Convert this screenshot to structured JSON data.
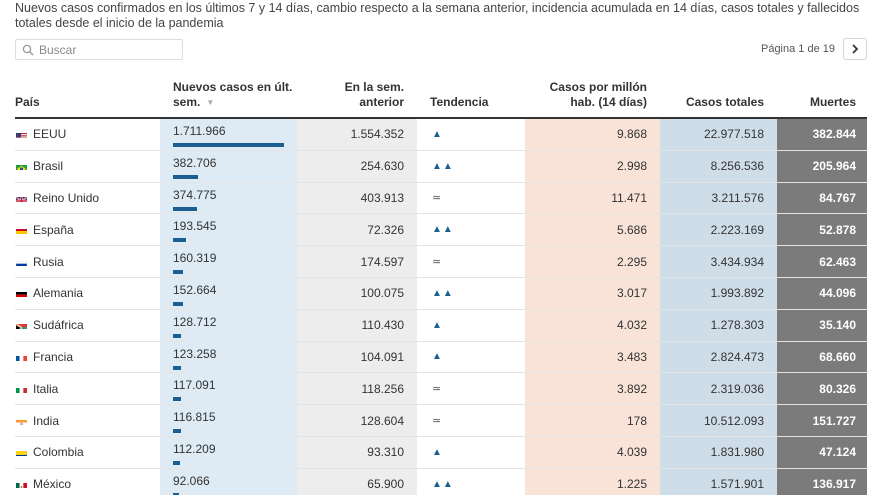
{
  "subtitle": "Nuevos casos confirmados en los últimos 7 y 14 días, cambio respecto a la semana anterior, incidencia acumulada en 14 días, casos totales y fallecidos totales desde el inicio de la pandemia",
  "search": {
    "placeholder": "Buscar"
  },
  "pager": {
    "label": "Página 1 de 19"
  },
  "headers": {
    "country": "País",
    "new_cases_line1": "Nuevos casos en últ.",
    "new_cases_line2": "sem.",
    "prev_week_line1": "En la sem.",
    "prev_week_line2": "anterior",
    "trend": "Tendencia",
    "per_million_line1": "Casos por millón",
    "per_million_line2": "hab. (14 días)",
    "total": "Casos totales",
    "deaths": "Muertes"
  },
  "colors": {
    "bar": "#1b5f90",
    "new_bg": "#deebf5",
    "prev_bg": "#ededed",
    "permil_bg": "#f9e3d8",
    "total_bg": "#cfdde9",
    "deaths_bg": "#7b7b7b"
  },
  "rows": [
    {
      "flag": "us-flag",
      "country": "EEUU",
      "new_cases": "1.711.966",
      "new_value": 1711966,
      "prev_week": "1.554.352",
      "trend": "▲",
      "per_million": "9.868",
      "total": "22.977.518",
      "deaths": "382.844"
    },
    {
      "flag": "br-flag",
      "country": "Brasil",
      "new_cases": "382.706",
      "new_value": 382706,
      "prev_week": "254.630",
      "trend": "▲▲",
      "per_million": "2.998",
      "total": "8.256.536",
      "deaths": "205.964"
    },
    {
      "flag": "gb-flag",
      "country": "Reino Unido",
      "new_cases": "374.775",
      "new_value": 374775,
      "prev_week": "403.913",
      "trend": "≃",
      "per_million": "11.471",
      "total": "3.211.576",
      "deaths": "84.767"
    },
    {
      "flag": "es-flag",
      "country": "España",
      "new_cases": "193.545",
      "new_value": 193545,
      "prev_week": "72.326",
      "trend": "▲▲",
      "per_million": "5.686",
      "total": "2.223.169",
      "deaths": "52.878"
    },
    {
      "flag": "ru-flag",
      "country": "Rusia",
      "new_cases": "160.319",
      "new_value": 160319,
      "prev_week": "174.597",
      "trend": "≃",
      "per_million": "2.295",
      "total": "3.434.934",
      "deaths": "62.463"
    },
    {
      "flag": "de-flag",
      "country": "Alemania",
      "new_cases": "152.664",
      "new_value": 152664,
      "prev_week": "100.075",
      "trend": "▲▲",
      "per_million": "3.017",
      "total": "1.993.892",
      "deaths": "44.096"
    },
    {
      "flag": "za-flag",
      "country": "Sudáfrica",
      "new_cases": "128.712",
      "new_value": 128712,
      "prev_week": "110.430",
      "trend": "▲",
      "per_million": "4.032",
      "total": "1.278.303",
      "deaths": "35.140"
    },
    {
      "flag": "fr-flag",
      "country": "Francia",
      "new_cases": "123.258",
      "new_value": 123258,
      "prev_week": "104.091",
      "trend": "▲",
      "per_million": "3.483",
      "total": "2.824.473",
      "deaths": "68.660"
    },
    {
      "flag": "it-flag",
      "country": "Italia",
      "new_cases": "117.091",
      "new_value": 117091,
      "prev_week": "118.256",
      "trend": "≃",
      "per_million": "3.892",
      "total": "2.319.036",
      "deaths": "80.326"
    },
    {
      "flag": "in-flag",
      "country": "India",
      "new_cases": "116.815",
      "new_value": 116815,
      "prev_week": "128.604",
      "trend": "≃",
      "per_million": "178",
      "total": "10.512.093",
      "deaths": "151.727"
    },
    {
      "flag": "co-flag",
      "country": "Colombia",
      "new_cases": "112.209",
      "new_value": 112209,
      "prev_week": "93.310",
      "trend": "▲",
      "per_million": "4.039",
      "total": "1.831.980",
      "deaths": "47.124"
    },
    {
      "flag": "mx-flag",
      "country": "México",
      "new_cases": "92.066",
      "new_value": 92066,
      "prev_week": "65.900",
      "trend": "▲▲",
      "per_million": "1.225",
      "total": "1.571.901",
      "deaths": "136.917"
    }
  ]
}
